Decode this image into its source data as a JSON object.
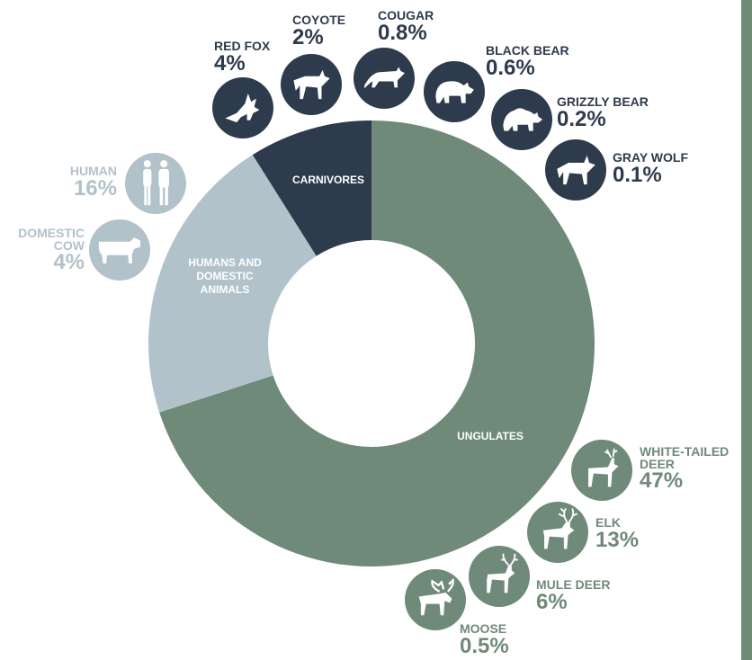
{
  "colors": {
    "ungulates": "#6f8a79",
    "humans_domestic": "#b2c2ca",
    "carnivores": "#2e3b4c",
    "sidebar": "#6f8a79",
    "background": "#ffffff"
  },
  "chart_data": {
    "type": "pie",
    "donut": true,
    "title": "",
    "segments": [
      {
        "name": "UNGULATES",
        "value": 66.5,
        "color": "#6f8a79"
      },
      {
        "name": "HUMANS AND DOMESTIC ANIMALS",
        "value": 20,
        "color": "#b2c2ca"
      },
      {
        "name": "CARNIVORES",
        "value": 8.5,
        "color": "#2e3b4c"
      }
    ],
    "categories": [
      {
        "name": "RED FOX",
        "value": "4%",
        "group": "CARNIVORES",
        "icon": "fox-icon"
      },
      {
        "name": "COYOTE",
        "value": "2%",
        "group": "CARNIVORES",
        "icon": "coyote-icon"
      },
      {
        "name": "COUGAR",
        "value": "0.8%",
        "group": "CARNIVORES",
        "icon": "cougar-icon"
      },
      {
        "name": "BLACK BEAR",
        "value": "0.6%",
        "group": "CARNIVORES",
        "icon": "black-bear-icon"
      },
      {
        "name": "GRIZZLY BEAR",
        "value": "0.2%",
        "group": "CARNIVORES",
        "icon": "grizzly-bear-icon"
      },
      {
        "name": "GRAY WOLF",
        "value": "0.1%",
        "group": "CARNIVORES",
        "icon": "wolf-icon"
      },
      {
        "name": "HUMAN",
        "value": "16%",
        "group": "HUMANS AND DOMESTIC ANIMALS",
        "icon": "human-icon"
      },
      {
        "name": "DOMESTIC COW",
        "value": "4%",
        "group": "HUMANS AND DOMESTIC ANIMALS",
        "icon": "cow-icon"
      },
      {
        "name": "WHITE-TAILED DEER",
        "value": "47%",
        "group": "UNGULATES",
        "icon": "white-tailed-deer-icon"
      },
      {
        "name": "ELK",
        "value": "13%",
        "group": "UNGULATES",
        "icon": "elk-icon"
      },
      {
        "name": "MULE DEER",
        "value": "6%",
        "group": "UNGULATES",
        "icon": "mule-deer-icon"
      },
      {
        "name": "MOOSE",
        "value": "0.5%",
        "group": "UNGULATES",
        "icon": "moose-icon"
      }
    ]
  }
}
